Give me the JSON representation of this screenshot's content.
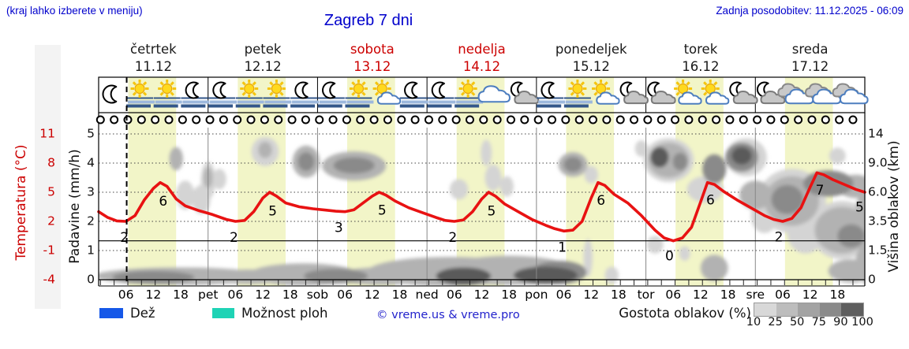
{
  "header": {
    "hint": "(kraj lahko izberete v meniju)",
    "title": "Zagreb 7 dni",
    "updated": "Zadnja posodobitev: 11.12.2025 - 06:09"
  },
  "days": [
    {
      "name": "četrtek",
      "date": "11.12",
      "red": false
    },
    {
      "name": "petek",
      "date": "12.12",
      "red": false
    },
    {
      "name": "sobota",
      "date": "13.12",
      "red": true
    },
    {
      "name": "nedelja",
      "date": "14.12",
      "red": true
    },
    {
      "name": "ponedeljek",
      "date": "15.12",
      "red": false
    },
    {
      "name": "torek",
      "date": "16.12",
      "red": false
    },
    {
      "name": "sreda",
      "date": "17.12",
      "red": false
    }
  ],
  "axes": {
    "temp_label": "Temperatura (°C)",
    "temp_ticks": [
      "11",
      "8",
      "5",
      "2",
      "-1",
      "-4"
    ],
    "precip_label": "Padavine (mm/h)",
    "precip_ticks": [
      "5",
      "4",
      "3",
      "2",
      "1",
      "0"
    ],
    "cloud_label": "Višina oblakov (km)",
    "cloud_ticks": [
      "14",
      "9.0",
      "6.0",
      "3.5",
      "1.5",
      "0"
    ]
  },
  "x_axis": {
    "hour_labels": [
      "06",
      "12",
      "18"
    ],
    "day_abbrevs": [
      "pet",
      "sob",
      "ned",
      "pon",
      "tor",
      "sre"
    ]
  },
  "legend": {
    "rain_label": "Dež",
    "rain_color": "#1658e8",
    "showers_label": "Možnost ploh",
    "showers_color": "#1ed3b5",
    "copyright": "© vreme.us & vreme.pro",
    "cloud_density_label": "Gostota oblakov (%)",
    "density_ticks": [
      "10",
      "25",
      "50",
      "75",
      "90",
      "100"
    ],
    "density_colors": [
      "#d8d8d8",
      "#bdbdbd",
      "#a3a3a3",
      "#8a8a8a",
      "#5e5e5e"
    ]
  },
  "colors": {
    "accent_blue": "#0000cc",
    "red": "#cc0000",
    "curve": "#e81212",
    "daylight_band": "#f2f5c8",
    "day_separator": "#888888",
    "cloud_shades": {
      "2": "#d4d4d4",
      "3": "#b2b2b2",
      "4": "#8a8a8a",
      "5": "#5a5a5a"
    }
  },
  "chart_data": {
    "type": "line",
    "title": "Zagreb 7 dni",
    "x_unit": "hours from Thu 00:00",
    "x_range": [
      0,
      168
    ],
    "grid_units": [
      0,
      5
    ],
    "temp_axis_map": "temp = 3*unit - 4",
    "now_hour": 6.15,
    "daylight_hours": [
      6.5,
      17
    ],
    "freezing_temp": 0,
    "temp_curve": {
      "name": "Temperatura",
      "points": [
        [
          0,
          3.0
        ],
        [
          2,
          2.4
        ],
        [
          4,
          2.05
        ],
        [
          6,
          2.0
        ],
        [
          8,
          2.6
        ],
        [
          10,
          4.2
        ],
        [
          12,
          5.4
        ],
        [
          13.5,
          6.0
        ],
        [
          15,
          5.6
        ],
        [
          17,
          4.3
        ],
        [
          19,
          3.6
        ],
        [
          22,
          3.1
        ],
        [
          25,
          2.7
        ],
        [
          28,
          2.2
        ],
        [
          30,
          2.0
        ],
        [
          32,
          2.1
        ],
        [
          34,
          3.0
        ],
        [
          36,
          4.4
        ],
        [
          37.5,
          5.0
        ],
        [
          39,
          4.6
        ],
        [
          41,
          3.9
        ],
        [
          44,
          3.5
        ],
        [
          47,
          3.3
        ],
        [
          50,
          3.15
        ],
        [
          52,
          3.05
        ],
        [
          54,
          3.0
        ],
        [
          56,
          3.2
        ],
        [
          58,
          3.9
        ],
        [
          60,
          4.6
        ],
        [
          61.5,
          5.0
        ],
        [
          63,
          4.7
        ],
        [
          65,
          4.1
        ],
        [
          68,
          3.4
        ],
        [
          71,
          2.9
        ],
        [
          74,
          2.4
        ],
        [
          76,
          2.1
        ],
        [
          78,
          2.0
        ],
        [
          80,
          2.15
        ],
        [
          82,
          3.0
        ],
        [
          84,
          4.3
        ],
        [
          85.5,
          5.0
        ],
        [
          87,
          4.6
        ],
        [
          89,
          3.8
        ],
        [
          92,
          3.0
        ],
        [
          95,
          2.2
        ],
        [
          98,
          1.6
        ],
        [
          100,
          1.25
        ],
        [
          102,
          1.0
        ],
        [
          104,
          1.1
        ],
        [
          106,
          2.0
        ],
        [
          108,
          4.4
        ],
        [
          109.5,
          6.0
        ],
        [
          111,
          5.7
        ],
        [
          113,
          4.8
        ],
        [
          116,
          3.9
        ],
        [
          119,
          2.6
        ],
        [
          122,
          1.1
        ],
        [
          124,
          0.3
        ],
        [
          126,
          0.0
        ],
        [
          128,
          0.3
        ],
        [
          130,
          1.4
        ],
        [
          132,
          4.0
        ],
        [
          133.5,
          6.0
        ],
        [
          135,
          5.8
        ],
        [
          137,
          5.1
        ],
        [
          140,
          4.2
        ],
        [
          143,
          3.4
        ],
        [
          146,
          2.6
        ],
        [
          148,
          2.2
        ],
        [
          150,
          2.0
        ],
        [
          152,
          2.3
        ],
        [
          154,
          3.4
        ],
        [
          156,
          5.5
        ],
        [
          157.5,
          7.0
        ],
        [
          159,
          6.8
        ],
        [
          161,
          6.3
        ],
        [
          164,
          5.7
        ],
        [
          166,
          5.3
        ],
        [
          168,
          5.0
        ]
      ]
    },
    "temp_point_labels": [
      [
        6,
        "2"
      ],
      [
        14.5,
        "6"
      ],
      [
        30,
        "2"
      ],
      [
        38.5,
        "5"
      ],
      [
        53,
        "3"
      ],
      [
        62.5,
        "5"
      ],
      [
        78,
        "2"
      ],
      [
        86.5,
        "5"
      ],
      [
        102,
        "1"
      ],
      [
        110.5,
        "6"
      ],
      [
        125.5,
        "0"
      ],
      [
        134.5,
        "6"
      ],
      [
        149.5,
        "2"
      ],
      [
        158.5,
        "7"
      ],
      [
        167.2,
        "5"
      ]
    ],
    "weather_icons": [
      "moon",
      "sun-fog",
      "sun-fog",
      "moon-fog",
      "moon-fog",
      "sun-fog",
      "sun-fog",
      "moon-fog",
      "moon-fog",
      "sun-fog",
      "sun-cloud",
      "moon-fog",
      "moon-fog",
      "sun-fog",
      "cloud",
      "moon-cloud",
      "moon-fog",
      "sun-fog",
      "sun-cloud",
      "moon-cloud",
      "moon-cloud",
      "sun-cloud",
      "sun-cloud",
      "moon-cloud",
      "moon-cloud",
      "clouds",
      "clouds",
      "clouds"
    ],
    "precip_markers": {
      "count": 56,
      "start_hour": 0.4,
      "step_hours": 3,
      "type": "none"
    },
    "cloud_blobs": [
      [
        18,
        0.12,
        19,
        0.3,
        3
      ],
      [
        12,
        0.08,
        9,
        0.22,
        4
      ],
      [
        33,
        0.1,
        8,
        0.25,
        3
      ],
      [
        45,
        0.18,
        12,
        0.38,
        3
      ],
      [
        52,
        0.12,
        7,
        0.25,
        4
      ],
      [
        62,
        0.12,
        10,
        0.3,
        3
      ],
      [
        77,
        0.28,
        18,
        0.5,
        3
      ],
      [
        80,
        0.12,
        6,
        0.3,
        5
      ],
      [
        98,
        0.15,
        7,
        0.3,
        5
      ],
      [
        90,
        0.32,
        14,
        0.5,
        3
      ],
      [
        101,
        0.25,
        6,
        0.4,
        4
      ],
      [
        107.3,
        0.75,
        1,
        0.65,
        2
      ],
      [
        112.5,
        0.15,
        1.5,
        0.3,
        2
      ],
      [
        122,
        1.2,
        1.8,
        0.3,
        2
      ],
      [
        128.5,
        0.9,
        1.2,
        0.25,
        2
      ],
      [
        135,
        0.4,
        3,
        0.45,
        3
      ],
      [
        165,
        0.3,
        5,
        0.4,
        3
      ],
      [
        171,
        0.6,
        5,
        0.9,
        3
      ],
      [
        17,
        4.15,
        1.5,
        0.4,
        3
      ],
      [
        19,
        2.9,
        2,
        0.5,
        2
      ],
      [
        22.5,
        2.75,
        2,
        0.5,
        2
      ],
      [
        24,
        3.4,
        1.6,
        0.65,
        2
      ],
      [
        24,
        3.5,
        1,
        0.35,
        3
      ],
      [
        26.5,
        3.45,
        1.5,
        0.35,
        2
      ],
      [
        36.5,
        4.4,
        3,
        0.5,
        2
      ],
      [
        36.5,
        4.45,
        1.5,
        0.28,
        3
      ],
      [
        45.5,
        4.05,
        3,
        0.55,
        3
      ],
      [
        45.5,
        4.05,
        1.8,
        0.32,
        4
      ],
      [
        56,
        3.9,
        7,
        0.5,
        3
      ],
      [
        56,
        3.92,
        4.5,
        0.28,
        4
      ],
      [
        79,
        3.1,
        2,
        0.35,
        2
      ],
      [
        85,
        4.35,
        1.2,
        0.45,
        2
      ],
      [
        86.5,
        3.5,
        1.8,
        0.45,
        2
      ],
      [
        89.5,
        3.2,
        1.5,
        0.35,
        2
      ],
      [
        104,
        3.95,
        3.2,
        0.42,
        3
      ],
      [
        104,
        3.95,
        2,
        0.26,
        4
      ],
      [
        108,
        3.6,
        1.5,
        0.3,
        2
      ],
      [
        119,
        4.5,
        1.4,
        0.28,
        2
      ],
      [
        125,
        4.1,
        5.5,
        0.75,
        2
      ],
      [
        125,
        4.1,
        4.5,
        0.6,
        3
      ],
      [
        123,
        4.2,
        2,
        0.35,
        5
      ],
      [
        127.5,
        4.05,
        1.6,
        0.3,
        4
      ],
      [
        142,
        4.2,
        4.5,
        0.65,
        2
      ],
      [
        135,
        3.8,
        2.6,
        0.5,
        4
      ],
      [
        141,
        4.2,
        3.6,
        0.5,
        4
      ],
      [
        141,
        4.25,
        2.2,
        0.3,
        5
      ],
      [
        133,
        3.1,
        4,
        0.45,
        2
      ],
      [
        144,
        2.9,
        3.5,
        0.5,
        3
      ],
      [
        152,
        2.7,
        7.5,
        1.1,
        2
      ],
      [
        152,
        2.7,
        6,
        0.85,
        3
      ],
      [
        151,
        2.75,
        3.5,
        0.5,
        4
      ],
      [
        160,
        3.3,
        5.5,
        0.45,
        4
      ],
      [
        166,
        3.2,
        4,
        0.4,
        3
      ],
      [
        163,
        1.7,
        7,
        1,
        2
      ],
      [
        163,
        1.7,
        6,
        0.8,
        3
      ],
      [
        165,
        1.5,
        3,
        0.4,
        4
      ],
      [
        162,
        4.25,
        1.8,
        0.28,
        2
      ],
      [
        170,
        2.3,
        4,
        1,
        3
      ],
      [
        146,
        2.2,
        3,
        0.6,
        2
      ],
      [
        155,
        1.6,
        4,
        0.7,
        2
      ]
    ]
  }
}
